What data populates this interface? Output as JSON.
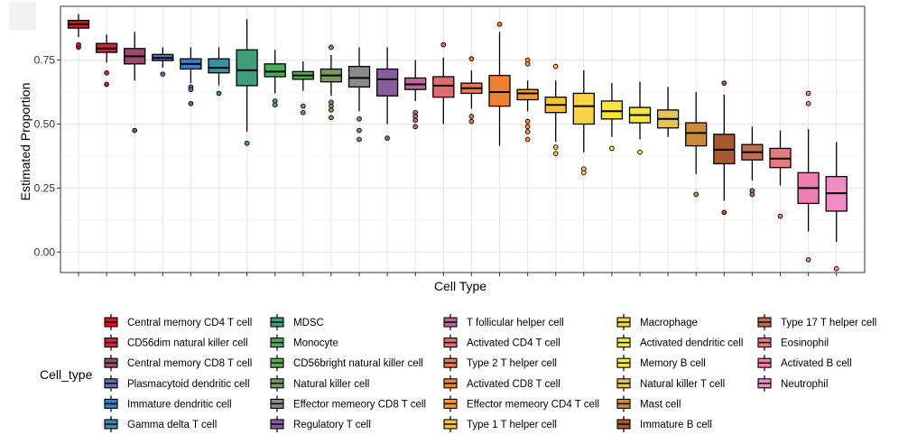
{
  "chart_data": {
    "type": "boxplot",
    "title": "",
    "xlabel": "Cell Type",
    "ylabel": "Estimated Proportion",
    "ylim": [
      -0.08,
      0.96
    ],
    "yticks": [
      0.0,
      0.25,
      0.5,
      0.75
    ],
    "ytick_labels": [
      "0.00",
      "0.25",
      "0.50",
      "0.75"
    ],
    "grid": true,
    "legend_title": "Cell_type",
    "legend_position": "bottom",
    "series": [
      {
        "name": "Central memory CD4 T cell",
        "color": "#d7191c",
        "min": 0.84,
        "q1": 0.875,
        "median": 0.89,
        "q3": 0.905,
        "max": 0.93,
        "outliers": [
          0.8,
          0.81
        ]
      },
      {
        "name": "CD56dim natural killer cell",
        "color": "#c9283d",
        "min": 0.74,
        "q1": 0.78,
        "median": 0.795,
        "q3": 0.815,
        "max": 0.85,
        "outliers": [
          0.7,
          0.655
        ]
      },
      {
        "name": "Central memory CD8 T cell",
        "color": "#9c4a6a",
        "min": 0.67,
        "q1": 0.735,
        "median": 0.765,
        "q3": 0.795,
        "max": 0.86,
        "outliers": [
          0.475
        ]
      },
      {
        "name": "Plasmacytoid dendritic cell",
        "color": "#5b70b0",
        "min": 0.72,
        "q1": 0.748,
        "median": 0.758,
        "q3": 0.772,
        "max": 0.8,
        "outliers": [
          0.695
        ]
      },
      {
        "name": "Immature dendritic cell",
        "color": "#3a7fbf",
        "min": 0.66,
        "q1": 0.715,
        "median": 0.735,
        "q3": 0.755,
        "max": 0.8,
        "outliers": [
          0.645,
          0.635,
          0.58
        ]
      },
      {
        "name": "Gamma delta T cell",
        "color": "#3a8fa8",
        "min": 0.65,
        "q1": 0.7,
        "median": 0.72,
        "q3": 0.755,
        "max": 0.8,
        "outliers": [
          0.62
        ]
      },
      {
        "name": "MDSC",
        "color": "#3e9e7c",
        "min": 0.47,
        "q1": 0.65,
        "median": 0.71,
        "q3": 0.79,
        "max": 0.91,
        "outliers": [
          0.425
        ]
      },
      {
        "name": "Monocyte",
        "color": "#4bab5a",
        "min": 0.62,
        "q1": 0.685,
        "median": 0.705,
        "q3": 0.735,
        "max": 0.79,
        "outliers": [
          0.59,
          0.575
        ]
      },
      {
        "name": "CD56bright natural killer cell",
        "color": "#58ad4a",
        "min": 0.63,
        "q1": 0.675,
        "median": 0.69,
        "q3": 0.705,
        "max": 0.745,
        "outliers": [
          0.57,
          0.545
        ]
      },
      {
        "name": "Natural killer cell",
        "color": "#749a5c",
        "min": 0.61,
        "q1": 0.665,
        "median": 0.69,
        "q3": 0.715,
        "max": 0.77,
        "outliers": [
          0.8,
          0.585,
          0.57,
          0.555,
          0.525
        ]
      },
      {
        "name": "Effector memeory CD8 T cell",
        "color": "#8a8a8a",
        "min": 0.55,
        "q1": 0.645,
        "median": 0.68,
        "q3": 0.725,
        "max": 0.8,
        "outliers": [
          0.52,
          0.475,
          0.44
        ]
      },
      {
        "name": "Regulatory T cell",
        "color": "#8a5b9e",
        "min": 0.5,
        "q1": 0.61,
        "median": 0.675,
        "q3": 0.715,
        "max": 0.8,
        "outliers": [
          0.445
        ]
      },
      {
        "name": "T follicular helper cell",
        "color": "#b8689b",
        "min": 0.59,
        "q1": 0.635,
        "median": 0.655,
        "q3": 0.68,
        "max": 0.75,
        "outliers": [
          0.545,
          0.53,
          0.515,
          0.49
        ]
      },
      {
        "name": "Activated CD4 T cell",
        "color": "#d9706e",
        "min": 0.5,
        "q1": 0.605,
        "median": 0.65,
        "q3": 0.685,
        "max": 0.76,
        "outliers": [
          0.81
        ]
      },
      {
        "name": "Type 2 T helper cell",
        "color": "#e67a55",
        "min": 0.56,
        "q1": 0.62,
        "median": 0.64,
        "q3": 0.66,
        "max": 0.71,
        "outliers": [
          0.755,
          0.53,
          0.51
        ]
      },
      {
        "name": "Activated CD8 T cell",
        "color": "#f0812e",
        "min": 0.415,
        "q1": 0.57,
        "median": 0.625,
        "q3": 0.69,
        "max": 0.86,
        "outliers": [
          0.89
        ]
      },
      {
        "name": "Effector memeory CD4 T cell",
        "color": "#f99a30",
        "min": 0.55,
        "q1": 0.595,
        "median": 0.62,
        "q3": 0.635,
        "max": 0.67,
        "outliers": [
          0.75,
          0.735,
          0.51,
          0.49,
          0.47,
          0.44
        ]
      },
      {
        "name": "Type 1 T helper cell",
        "color": "#f9c233",
        "min": 0.43,
        "q1": 0.545,
        "median": 0.575,
        "q3": 0.605,
        "max": 0.67,
        "outliers": [
          0.725,
          0.41,
          0.385
        ]
      },
      {
        "name": "Macrophage",
        "color": "#f8d347",
        "min": 0.39,
        "q1": 0.5,
        "median": 0.57,
        "q3": 0.62,
        "max": 0.71,
        "outliers": [
          0.325,
          0.31
        ]
      },
      {
        "name": "Activated dendritic cell",
        "color": "#f7e43d",
        "min": 0.45,
        "q1": 0.52,
        "median": 0.55,
        "q3": 0.59,
        "max": 0.66,
        "outliers": [
          0.405
        ]
      },
      {
        "name": "Memory B cell",
        "color": "#f4e644",
        "min": 0.44,
        "q1": 0.505,
        "median": 0.535,
        "q3": 0.565,
        "max": 0.665,
        "outliers": [
          0.39
        ]
      },
      {
        "name": "Natural killer T cell",
        "color": "#e4c45a",
        "min": 0.45,
        "q1": 0.485,
        "median": 0.52,
        "q3": 0.555,
        "max": 0.645,
        "outliers": []
      },
      {
        "name": "Mast cell",
        "color": "#cc8a3a",
        "min": 0.305,
        "q1": 0.415,
        "median": 0.465,
        "q3": 0.505,
        "max": 0.625,
        "outliers": [
          0.225
        ]
      },
      {
        "name": "Immature  B cell",
        "color": "#a8582e",
        "min": 0.2,
        "q1": 0.345,
        "median": 0.4,
        "q3": 0.46,
        "max": 0.615,
        "outliers": [
          0.66,
          0.155
        ]
      },
      {
        "name": "Type 17 T helper cell",
        "color": "#c66b54",
        "min": 0.28,
        "q1": 0.36,
        "median": 0.39,
        "q3": 0.42,
        "max": 0.49,
        "outliers": [
          0.24,
          0.225
        ]
      },
      {
        "name": "Eosinophil",
        "color": "#e57a7a",
        "min": 0.26,
        "q1": 0.33,
        "median": 0.365,
        "q3": 0.405,
        "max": 0.475,
        "outliers": [
          0.14
        ]
      },
      {
        "name": "Activated B cell",
        "color": "#ef7fb0",
        "min": 0.08,
        "q1": 0.19,
        "median": 0.25,
        "q3": 0.31,
        "max": 0.48,
        "outliers": [
          0.62,
          0.58,
          -0.03
        ]
      },
      {
        "name": "Neutrophil",
        "color": "#f28ac4",
        "min": 0.04,
        "q1": 0.16,
        "median": 0.23,
        "q3": 0.295,
        "max": 0.43,
        "outliers": [
          -0.065
        ]
      }
    ]
  }
}
